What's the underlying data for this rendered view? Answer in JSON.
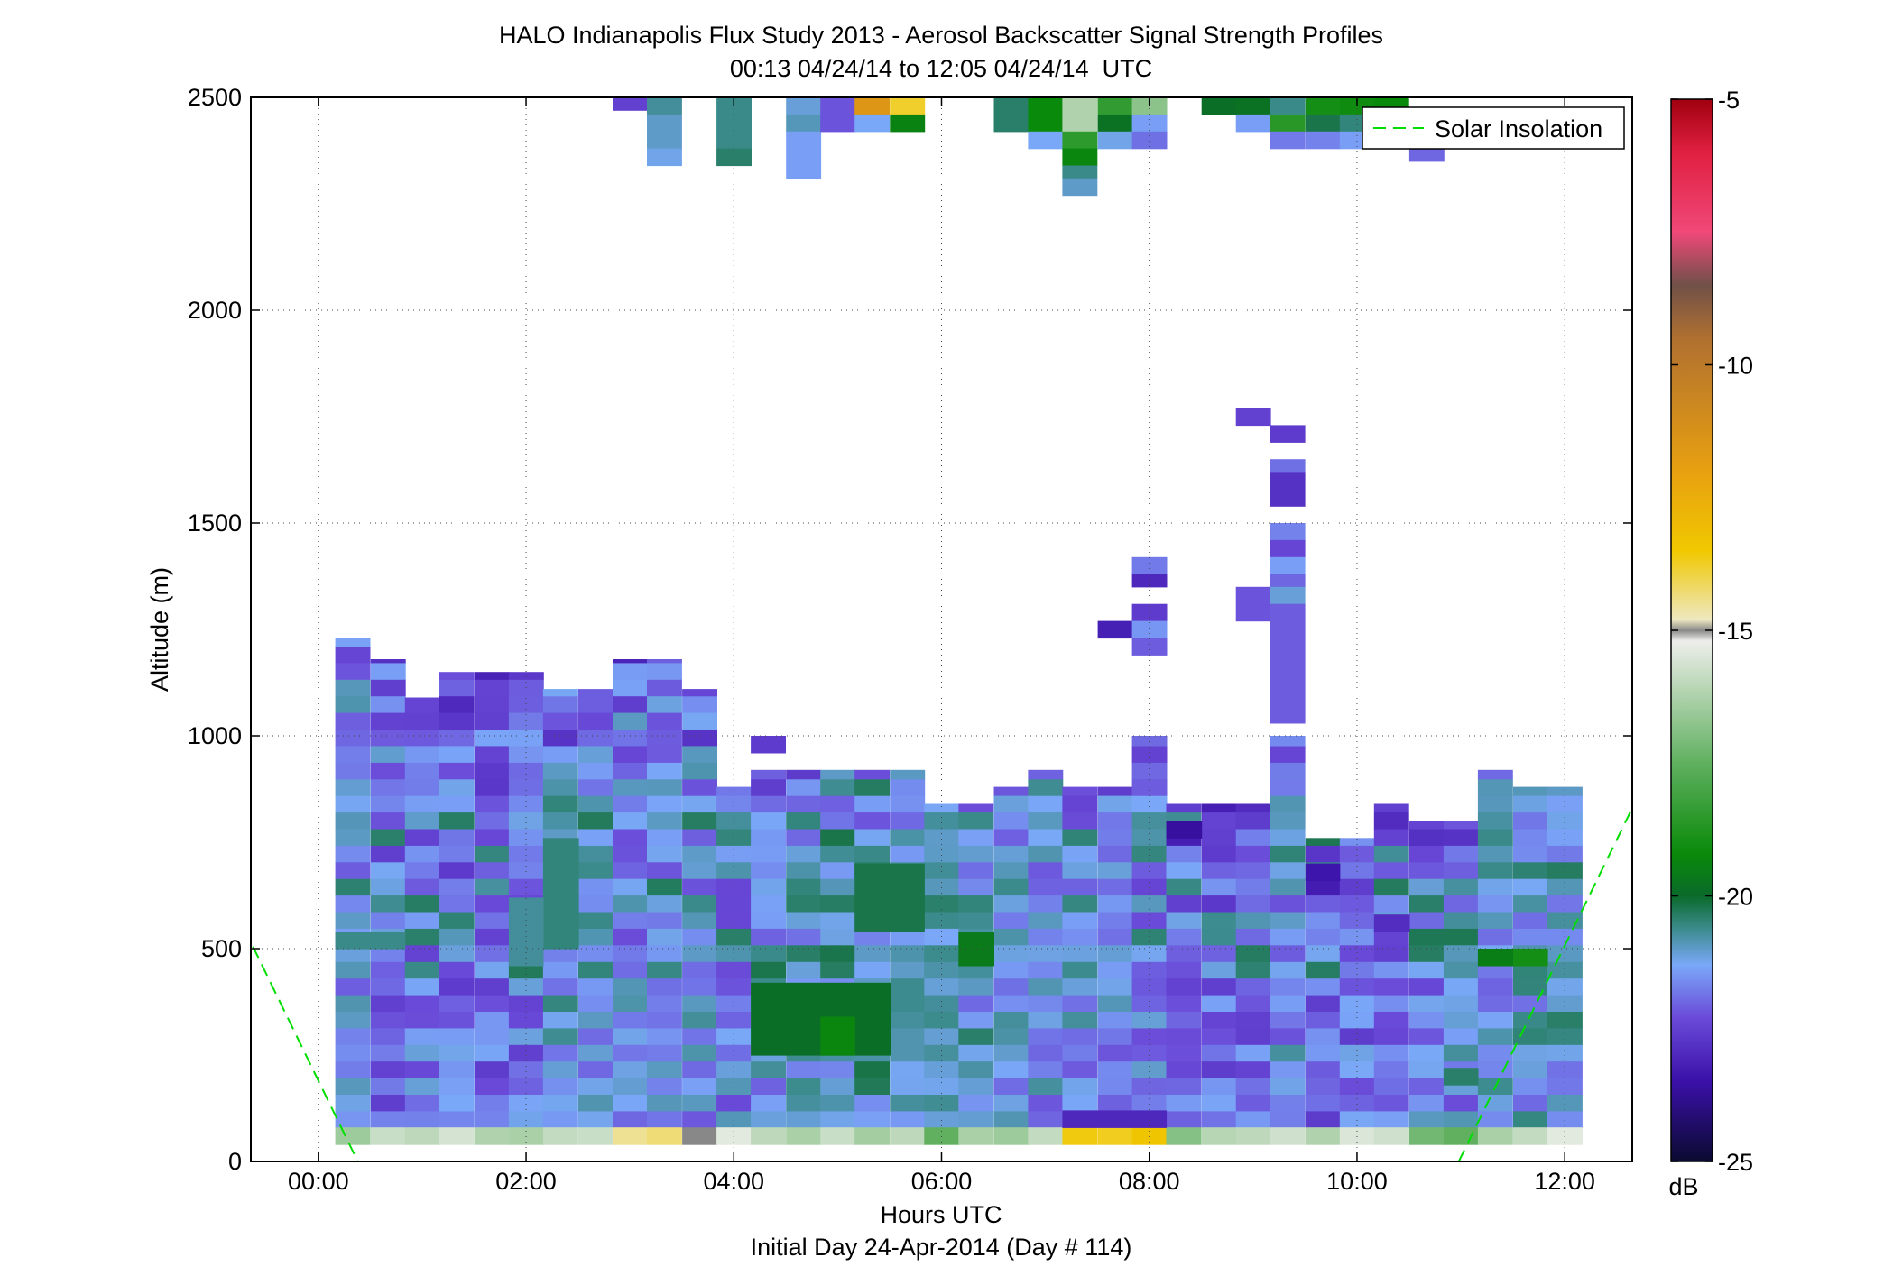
{
  "chart_data": {
    "type": "heatmap",
    "title": "HALO Indianapolis Flux Study 2013 - Aerosol Backscatter Signal Strength Profiles",
    "subtitle": "00:13 04/24/14 to 12:05 04/24/14  UTC",
    "xlabel": "Hours UTC",
    "xlabel2": "Initial Day 24-Apr-2014 (Day # 114)",
    "ylabel": "Altitude (m)",
    "xlim": [
      -0.65,
      12.65
    ],
    "ylim": [
      0,
      2500
    ],
    "x_ticks": [
      0,
      2,
      4,
      6,
      8,
      10,
      12
    ],
    "x_tick_labels": [
      "00:00",
      "02:00",
      "04:00",
      "06:00",
      "08:00",
      "10:00",
      "12:00"
    ],
    "y_ticks": [
      0,
      500,
      1000,
      1500,
      2000,
      2500
    ],
    "y_tick_labels": [
      "0",
      "500",
      "1000",
      "1500",
      "2000",
      "2500"
    ],
    "grid": true,
    "legend": {
      "position": "top-right",
      "entries": [
        {
          "name": "Solar Insolation",
          "color": "#00dd00",
          "style": "dashed"
        }
      ]
    },
    "colorbar": {
      "label": "dB",
      "range": [
        -25,
        -5
      ],
      "ticks": [
        -5,
        -10,
        -15,
        -20,
        -25
      ],
      "tick_labels": [
        "-5",
        "-10",
        "-15",
        "-20",
        "-25"
      ],
      "stops": [
        {
          "v": -25,
          "color": "#0a0a30"
        },
        {
          "v": -23.5,
          "color": "#3a10a8"
        },
        {
          "v": -22.3,
          "color": "#6a4ad8"
        },
        {
          "v": -21.3,
          "color": "#7aa8f8"
        },
        {
          "v": -20.6,
          "color": "#3a8a8a"
        },
        {
          "v": -20.0,
          "color": "#0a6a2a"
        },
        {
          "v": -19.2,
          "color": "#0a8a0a"
        },
        {
          "v": -17.5,
          "color": "#60b060"
        },
        {
          "v": -15.2,
          "color": "#eeeeea"
        },
        {
          "v": -15.0,
          "color": "#888888"
        },
        {
          "v": -14.8,
          "color": "#eee8c0"
        },
        {
          "v": -13.5,
          "color": "#f0c800"
        },
        {
          "v": -12,
          "color": "#e8a010"
        },
        {
          "v": -9.5,
          "color": "#b07030"
        },
        {
          "v": -8.5,
          "color": "#705048"
        },
        {
          "v": -7.5,
          "color": "#f04878"
        },
        {
          "v": -6,
          "color": "#e02040"
        },
        {
          "v": -5,
          "color": "#a00010"
        }
      ]
    },
    "x_bin_hours": 0.333,
    "altitude_bin_m": 39,
    "solar_insolation": {
      "segments": [
        {
          "x": [
            -0.63,
            0.38
          ],
          "y": [
            505,
            0
          ]
        },
        {
          "x": [
            10.98,
            12.65
          ],
          "y": [
            0,
            830
          ]
        }
      ]
    },
    "profiles": [
      {
        "x": 0.33,
        "top": 1230,
        "mean": -21.6
      },
      {
        "x": 0.67,
        "top": 1180,
        "mean": -21.8
      },
      {
        "x": 1.0,
        "top": 1090,
        "mean": -21.7
      },
      {
        "x": 1.33,
        "top": 1150,
        "mean": -21.9
      },
      {
        "x": 1.67,
        "top": 1150,
        "mean": -22.0
      },
      {
        "x": 2.0,
        "top": 1150,
        "mean": -21.8
      },
      {
        "x": 2.33,
        "top": 1110,
        "mean": -21.3
      },
      {
        "x": 2.67,
        "top": 1110,
        "mean": -21.4
      },
      {
        "x": 3.0,
        "top": 1180,
        "mean": -21.6
      },
      {
        "x": 3.33,
        "top": 1180,
        "mean": -21.5
      },
      {
        "x": 3.67,
        "top": 1110,
        "mean": -21.5
      },
      {
        "x": 4.0,
        "top": 880,
        "mean": -21.6
      },
      {
        "x": 4.33,
        "top": 920,
        "mean": -21.4
      },
      {
        "x": 4.67,
        "top": 920,
        "mean": -21.3
      },
      {
        "x": 5.0,
        "top": 920,
        "mean": -21.0
      },
      {
        "x": 5.33,
        "top": 920,
        "mean": -20.9
      },
      {
        "x": 5.67,
        "top": 920,
        "mean": -20.9
      },
      {
        "x": 6.0,
        "top": 840,
        "mean": -21.1
      },
      {
        "x": 6.33,
        "top": 840,
        "mean": -21.2
      },
      {
        "x": 6.67,
        "top": 880,
        "mean": -21.4
      },
      {
        "x": 7.0,
        "top": 920,
        "mean": -21.4
      },
      {
        "x": 7.33,
        "top": 880,
        "mean": -21.5
      },
      {
        "x": 7.67,
        "top": 880,
        "mean": -21.6
      },
      {
        "x": 8.0,
        "top": 1000,
        "mean": -21.7
      },
      {
        "x": 8.33,
        "top": 840,
        "mean": -21.8
      },
      {
        "x": 8.67,
        "top": 840,
        "mean": -21.9
      },
      {
        "x": 9.0,
        "top": 840,
        "mean": -21.8
      },
      {
        "x": 9.33,
        "top": 1000,
        "mean": -21.5
      },
      {
        "x": 9.67,
        "top": 760,
        "mean": -21.9
      },
      {
        "x": 10.0,
        "top": 760,
        "mean": -21.9
      },
      {
        "x": 10.33,
        "top": 840,
        "mean": -21.8
      },
      {
        "x": 10.67,
        "top": 800,
        "mean": -21.7
      },
      {
        "x": 11.0,
        "top": 800,
        "mean": -21.5
      },
      {
        "x": 11.33,
        "top": 920,
        "mean": -21.3
      },
      {
        "x": 11.67,
        "top": 880,
        "mean": -21.2
      },
      {
        "x": 12.0,
        "top": 880,
        "mean": -21.1
      }
    ],
    "surface_row": [
      -16.5,
      -15.8,
      -16.0,
      -15.6,
      -16.2,
      -16.3,
      -15.9,
      -15.8,
      -14.5,
      -14.3,
      -15.0,
      -15.4,
      -16.0,
      -16.3,
      -15.8,
      -16.4,
      -16.0,
      -17.5,
      -16.3,
      -16.5,
      -15.9,
      -13.6,
      -13.7,
      -13.4,
      -16.9,
      -16.1,
      -16.0,
      -15.7,
      -16.2,
      -15.5,
      -15.7,
      -17.2,
      -17.5,
      -16.3,
      -15.9,
      -15.4
    ],
    "upper_cells": [
      {
        "x": 3.0,
        "y0": 2500,
        "y1": 2470,
        "v": -22.5
      },
      {
        "x": 3.33,
        "y0": 2500,
        "y1": 2460,
        "v": -20.7
      },
      {
        "x": 3.33,
        "y0": 2460,
        "y1": 2380,
        "v": -21.0
      },
      {
        "x": 3.33,
        "y0": 2380,
        "y1": 2340,
        "v": -21.2
      },
      {
        "x": 4.0,
        "y0": 2500,
        "y1": 2380,
        "v": -20.6
      },
      {
        "x": 4.0,
        "y0": 2380,
        "y1": 2340,
        "v": -20.4
      },
      {
        "x": 4.67,
        "y0": 2500,
        "y1": 2460,
        "v": -21.1
      },
      {
        "x": 4.67,
        "y0": 2460,
        "y1": 2420,
        "v": -20.9
      },
      {
        "x": 4.67,
        "y0": 2420,
        "y1": 2310,
        "v": -21.4
      },
      {
        "x": 5.0,
        "y0": 2500,
        "y1": 2420,
        "v": -22.2
      },
      {
        "x": 5.33,
        "y0": 2500,
        "y1": 2460,
        "v": -11.5
      },
      {
        "x": 5.33,
        "y0": 2460,
        "y1": 2420,
        "v": -21.3
      },
      {
        "x": 5.67,
        "y0": 2500,
        "y1": 2460,
        "v": -13.8
      },
      {
        "x": 5.67,
        "y0": 2460,
        "y1": 2420,
        "v": -19.4
      },
      {
        "x": 6.67,
        "y0": 2500,
        "y1": 2420,
        "v": -20.4
      },
      {
        "x": 7.0,
        "y0": 2500,
        "y1": 2420,
        "v": -19.2
      },
      {
        "x": 7.0,
        "y0": 2420,
        "y1": 2380,
        "v": -21.3
      },
      {
        "x": 7.33,
        "y0": 2500,
        "y1": 2420,
        "v": -16.2
      },
      {
        "x": 7.33,
        "y0": 2420,
        "y1": 2380,
        "v": -18.5
      },
      {
        "x": 7.33,
        "y0": 2380,
        "y1": 2340,
        "v": -19.3
      },
      {
        "x": 7.33,
        "y0": 2340,
        "y1": 2310,
        "v": -20.6
      },
      {
        "x": 7.33,
        "y0": 2310,
        "y1": 2270,
        "v": -21.0
      },
      {
        "x": 7.67,
        "y0": 2500,
        "y1": 2460,
        "v": -18.4
      },
      {
        "x": 7.67,
        "y0": 2460,
        "y1": 2420,
        "v": -19.8
      },
      {
        "x": 7.67,
        "y0": 2420,
        "y1": 2380,
        "v": -21.2
      },
      {
        "x": 8.0,
        "y0": 2500,
        "y1": 2460,
        "v": -16.8
      },
      {
        "x": 8.0,
        "y0": 2460,
        "y1": 2420,
        "v": -21.4
      },
      {
        "x": 8.0,
        "y0": 2420,
        "y1": 2380,
        "v": -21.9
      },
      {
        "x": 8.67,
        "y0": 2500,
        "y1": 2460,
        "v": -19.9
      },
      {
        "x": 9.0,
        "y0": 2500,
        "y1": 2460,
        "v": -19.8
      },
      {
        "x": 9.0,
        "y0": 2460,
        "y1": 2420,
        "v": -21.4
      },
      {
        "x": 9.33,
        "y0": 2500,
        "y1": 2460,
        "v": -20.6
      },
      {
        "x": 9.33,
        "y0": 2460,
        "y1": 2420,
        "v": -18.6
      },
      {
        "x": 9.33,
        "y0": 2420,
        "y1": 2380,
        "v": -21.8
      },
      {
        "x": 9.67,
        "y0": 2500,
        "y1": 2460,
        "v": -19.0
      },
      {
        "x": 9.67,
        "y0": 2460,
        "y1": 2420,
        "v": -20.2
      },
      {
        "x": 9.67,
        "y0": 2420,
        "y1": 2380,
        "v": -21.7
      },
      {
        "x": 10.0,
        "y0": 2500,
        "y1": 2460,
        "v": -19.1
      },
      {
        "x": 10.0,
        "y0": 2460,
        "y1": 2420,
        "v": -20.5
      },
      {
        "x": 10.0,
        "y0": 2420,
        "y1": 2380,
        "v": -21.4
      },
      {
        "x": 10.33,
        "y0": 2500,
        "y1": 2420,
        "v": -19.2
      },
      {
        "x": 10.67,
        "y0": 2420,
        "y1": 2350,
        "v": -22.0
      }
    ],
    "isolated_cells": [
      {
        "x": 4.33,
        "y0": 1000,
        "y1": 960,
        "v": -22.6
      },
      {
        "x": 7.67,
        "y0": 1270,
        "y1": 1230,
        "v": -23.2
      },
      {
        "x": 8.0,
        "y0": 1420,
        "y1": 1380,
        "v": -21.8
      },
      {
        "x": 8.0,
        "y0": 1380,
        "y1": 1350,
        "v": -23.0
      },
      {
        "x": 8.0,
        "y0": 1310,
        "y1": 1270,
        "v": -22.6
      },
      {
        "x": 8.0,
        "y0": 1270,
        "y1": 1230,
        "v": -21.5
      },
      {
        "x": 8.0,
        "y0": 1230,
        "y1": 1190,
        "v": -22.1
      },
      {
        "x": 9.0,
        "y0": 1770,
        "y1": 1730,
        "v": -22.5
      },
      {
        "x": 9.0,
        "y0": 1350,
        "y1": 1270,
        "v": -22.2
      },
      {
        "x": 9.33,
        "y0": 1730,
        "y1": 1690,
        "v": -22.6
      },
      {
        "x": 9.33,
        "y0": 1650,
        "y1": 1620,
        "v": -21.9
      },
      {
        "x": 9.33,
        "y0": 1620,
        "y1": 1540,
        "v": -22.8
      },
      {
        "x": 9.33,
        "y0": 1500,
        "y1": 1460,
        "v": -21.7
      },
      {
        "x": 9.33,
        "y0": 1460,
        "y1": 1420,
        "v": -22.4
      },
      {
        "x": 9.33,
        "y0": 1420,
        "y1": 1380,
        "v": -21.4
      },
      {
        "x": 9.33,
        "y0": 1380,
        "y1": 1350,
        "v": -22.0
      },
      {
        "x": 9.33,
        "y0": 1350,
        "y1": 1310,
        "v": -21.1
      },
      {
        "x": 9.33,
        "y0": 1310,
        "y1": 1030,
        "v": -22.1
      }
    ],
    "features": [
      {
        "x": [
          2.33,
          2.67
        ],
        "y": [
          500,
          760
        ],
        "v": -20.5
      },
      {
        "x": [
          2.0,
          2.33
        ],
        "y": [
          460,
          620
        ],
        "v": -20.7
      },
      {
        "x": [
          0.33,
          1.0
        ],
        "y": [
          500,
          540
        ],
        "v": -20.6
      },
      {
        "x": [
          4.33,
          5.67
        ],
        "y": [
          250,
          420
        ],
        "v": -19.9
      },
      {
        "x": [
          5.33,
          6.0
        ],
        "y": [
          540,
          700
        ],
        "v": -20.2
      },
      {
        "x": [
          6.33,
          6.67
        ],
        "y": [
          460,
          540
        ],
        "v": -19.6
      },
      {
        "x": [
          5.0,
          5.33
        ],
        "y": [
          250,
          340
        ],
        "v": -19.3
      },
      {
        "x": [
          11.33,
          11.67
        ],
        "y": [
          460,
          500
        ],
        "v": -19.5
      },
      {
        "x": [
          11.67,
          12.0
        ],
        "y": [
          460,
          500
        ],
        "v": -19.0
      },
      {
        "x": [
          11.0,
          11.33
        ],
        "y": [
          180,
          220
        ],
        "v": -20.4
      },
      {
        "x": [
          7.33,
          8.33
        ],
        "y": [
          80,
          120
        ],
        "v": -23.0
      },
      {
        "x": [
          8.33,
          8.67
        ],
        "y": [
          760,
          800
        ],
        "v": -23.6
      },
      {
        "x": [
          9.67,
          10.0
        ],
        "y": [
          660,
          700
        ],
        "v": -23.4
      },
      {
        "x": [
          10.33,
          10.67
        ],
        "y": [
          540,
          580
        ],
        "v": -22.9
      }
    ]
  }
}
